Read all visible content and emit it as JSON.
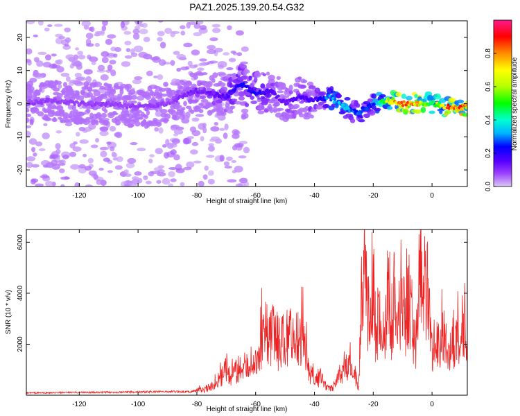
{
  "title": "PAZ1.2025.139.20.54.G32",
  "chart_data": [
    {
      "type": "heatmap",
      "xlabel": "Height of straight line (km)",
      "ylabel": "Frequency (Hz)",
      "xlim": [
        -138,
        12
      ],
      "ylim": [
        -25,
        25
      ],
      "xticks": [
        -120,
        -100,
        -80,
        -60,
        -40,
        -20,
        0
      ],
      "yticks": [
        -20,
        -10,
        0,
        10,
        20
      ],
      "colorbar": {
        "label": "Normalized spectral amplitude",
        "range": [
          0,
          1
        ],
        "ticks": [
          0.0,
          0.2,
          0.4,
          0.6,
          0.8
        ],
        "colormap": [
          "#dcc8f5",
          "#9b40ff",
          "#5a00ff",
          "#0000ff",
          "#00b4ff",
          "#00ffd0",
          "#00ff00",
          "#b4ff00",
          "#ffff00",
          "#ff8c00",
          "#ff0000",
          "#ff1a8c"
        ]
      },
      "ridge": {
        "x": [
          -138,
          -130,
          -120,
          -110,
          -100,
          -90,
          -80,
          -75,
          -70,
          -65,
          -60,
          -55,
          -50,
          -45,
          -40,
          -35,
          -30,
          -25,
          -20,
          -15,
          -10,
          -5,
          0,
          5,
          12
        ],
        "freq": [
          0,
          1,
          0,
          0,
          -1,
          0,
          4,
          3,
          2,
          6,
          3,
          4,
          0,
          2,
          1,
          2,
          -1,
          -3,
          0,
          1,
          0,
          0,
          0,
          -1,
          -1
        ],
        "amplitude": [
          0.1,
          0.1,
          0.1,
          0.1,
          0.1,
          0.1,
          0.15,
          0.15,
          0.2,
          0.25,
          0.25,
          0.2,
          0.15,
          0.2,
          0.2,
          0.35,
          0.4,
          0.3,
          0.3,
          0.7,
          0.9,
          0.8,
          0.5,
          0.85,
          0.85
        ]
      }
    },
    {
      "type": "line",
      "xlabel": "Height of straight line (km)",
      "ylabel": "SNR (10 * v/v)",
      "xlim": [
        -138,
        12
      ],
      "ylim": [
        0,
        6500
      ],
      "xticks": [
        -120,
        -100,
        -80,
        -60,
        -40,
        -20,
        0
      ],
      "yticks": [
        2000,
        4000,
        6000
      ],
      "series": [
        {
          "color": "#ee2222",
          "x": [
            -138,
            -130,
            -120,
            -110,
            -100,
            -90,
            -82,
            -78,
            -74,
            -72,
            -70,
            -68,
            -66,
            -64,
            -62,
            -60,
            -58,
            -56,
            -54,
            -52,
            -50,
            -48,
            -46,
            -44,
            -42,
            -40,
            -38,
            -36,
            -34,
            -32,
            -30,
            -28,
            -27,
            -26,
            -25,
            -24,
            -23,
            -22,
            -21,
            -20,
            -19,
            -18,
            -17,
            -16,
            -15,
            -14,
            -13,
            -12,
            -11,
            -10,
            -9,
            -8,
            -7,
            -6,
            -5,
            -4,
            -3,
            -2,
            -1,
            0,
            1,
            2,
            4,
            6,
            8,
            10,
            12
          ],
          "values": [
            100,
            100,
            120,
            120,
            140,
            150,
            150,
            250,
            450,
            800,
            1100,
            900,
            1200,
            900,
            1500,
            1400,
            2500,
            2100,
            2800,
            2200,
            2400,
            2700,
            1800,
            2600,
            1200,
            600,
            800,
            400,
            300,
            800,
            1100,
            1300,
            1000,
            900,
            200,
            4000,
            6400,
            3800,
            3000,
            4300,
            2700,
            3500,
            2200,
            3000,
            3700,
            3000,
            4500,
            2400,
            3800,
            4200,
            3100,
            4400,
            3600,
            2500,
            2700,
            5900,
            4200,
            4700,
            4300,
            2000,
            2500,
            2100,
            2500,
            2200,
            2700,
            2500,
            2700
          ]
        }
      ]
    }
  ]
}
